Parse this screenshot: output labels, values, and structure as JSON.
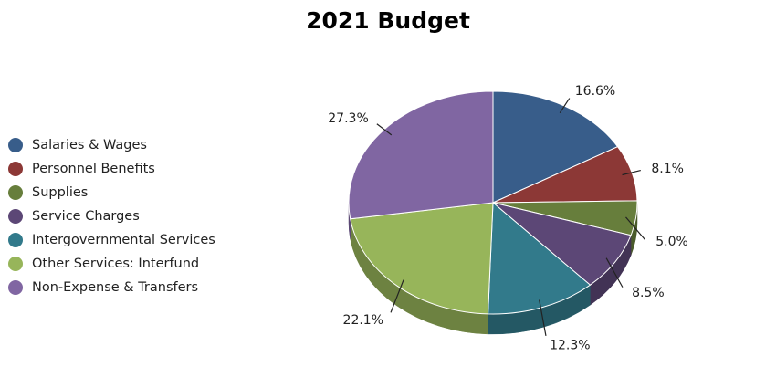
{
  "chart_data": {
    "type": "pie",
    "title": "2021 Budget",
    "legend_position": "left",
    "slices": [
      {
        "label": "Salaries & Wages",
        "value": 16.6,
        "value_label": "16.6%",
        "color": "#385d8a"
      },
      {
        "label": "Personnel Benefits",
        "value": 8.1,
        "value_label": "8.1%",
        "color": "#8c3836"
      },
      {
        "label": "Supplies",
        "value": 5.0,
        "value_label": "5.0%",
        "color": "#677e3c"
      },
      {
        "label": "Service Charges",
        "value": 8.5,
        "value_label": "8.5%",
        "color": "#5c4776"
      },
      {
        "label": "Intergovernmental Services",
        "value": 12.3,
        "value_label": "12.3%",
        "color": "#327a8b"
      },
      {
        "label": "Other Services:  Interfund",
        "value": 22.1,
        "value_label": "22.1%",
        "color": "#97b55a"
      },
      {
        "label": "Non-Expense & Transfers",
        "value": 27.3,
        "value_label": "27.3%",
        "color": "#8066a2"
      }
    ]
  }
}
